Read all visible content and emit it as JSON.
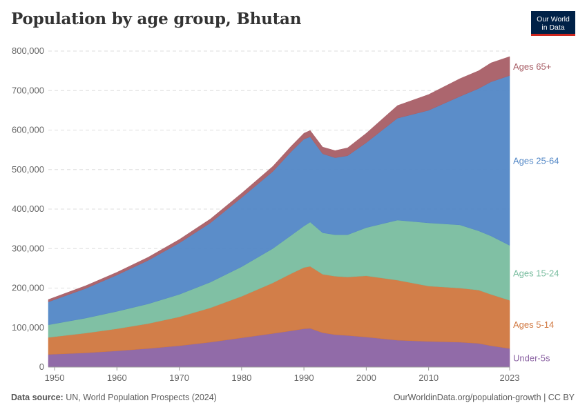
{
  "title": "Population by age group, Bhutan",
  "logo": {
    "line1": "Our World",
    "line2": "in Data"
  },
  "footer": {
    "source_label": "Data source:",
    "source_text": "UN, World Population Prospects (2024)",
    "url_text": "OurWorldinData.org/population-growth | CC BY"
  },
  "colors": {
    "under5": "#8b63a3",
    "age5_14": "#d0773f",
    "age15_24": "#79bd9f",
    "age25_64": "#5287c6",
    "age65plus": "#a85e66"
  },
  "chart_data": {
    "type": "area",
    "stacked": true,
    "title": "Population by age group, Bhutan",
    "xlabel": "",
    "ylabel": "",
    "xlim": [
      1949,
      2023
    ],
    "ylim": [
      0,
      800000
    ],
    "y_ticks": [
      0,
      100000,
      200000,
      300000,
      400000,
      500000,
      600000,
      700000,
      800000
    ],
    "y_tick_labels": [
      "0",
      "100,000",
      "200,000",
      "300,000",
      "400,000",
      "500,000",
      "600,000",
      "700,000",
      "800,000"
    ],
    "x_ticks": [
      1950,
      1960,
      1970,
      1980,
      1990,
      2000,
      2010,
      2023
    ],
    "x_tick_labels": [
      "1950",
      "1960",
      "1970",
      "1980",
      "1990",
      "2000",
      "2010",
      "2023"
    ],
    "x": [
      1949,
      1955,
      1960,
      1965,
      1970,
      1975,
      1980,
      1985,
      1988,
      1990,
      1991,
      1993,
      1995,
      1997,
      2000,
      2005,
      2010,
      2015,
      2018,
      2020,
      2023
    ],
    "series": [
      {
        "name": "Under-5s",
        "color": "#8b63a3",
        "values": [
          32000,
          36000,
          41000,
          47000,
          54000,
          63000,
          74000,
          85000,
          92000,
          97000,
          98000,
          87000,
          82000,
          80000,
          76000,
          68000,
          65000,
          63000,
          60000,
          54000,
          47000
        ]
      },
      {
        "name": "Ages 5-14",
        "color": "#d0773f",
        "values": [
          43000,
          50000,
          56000,
          63000,
          73000,
          87000,
          105000,
          128000,
          145000,
          155000,
          157000,
          148000,
          148000,
          148000,
          155000,
          152000,
          140000,
          137000,
          135000,
          130000,
          122000
        ]
      },
      {
        "name": "Ages 15-24",
        "color": "#79bd9f",
        "values": [
          32000,
          38000,
          44000,
          50000,
          57000,
          65000,
          75000,
          87000,
          97000,
          105000,
          112000,
          105000,
          105000,
          107000,
          122000,
          152000,
          160000,
          160000,
          150000,
          148000,
          139000
        ]
      },
      {
        "name": "Ages 25-64",
        "color": "#5287c6",
        "values": [
          58000,
          75000,
          92000,
          110000,
          130000,
          150000,
          175000,
          195000,
          212000,
          220000,
          216000,
          200000,
          195000,
          200000,
          215000,
          258000,
          285000,
          325000,
          360000,
          390000,
          430000
        ]
      },
      {
        "name": "Ages 65+",
        "color": "#a85e66",
        "values": [
          6000,
          7000,
          7000,
          8000,
          9000,
          10000,
          11000,
          13000,
          14000,
          15000,
          16000,
          17000,
          18000,
          20000,
          24000,
          32000,
          40000,
          45000,
          45000,
          48000,
          48000
        ]
      }
    ],
    "series_labels": [
      "Ages 65+",
      "Ages 25-64",
      "Ages 15-24",
      "Ages 5-14",
      "Under-5s"
    ],
    "grid": true,
    "legend": "right"
  }
}
